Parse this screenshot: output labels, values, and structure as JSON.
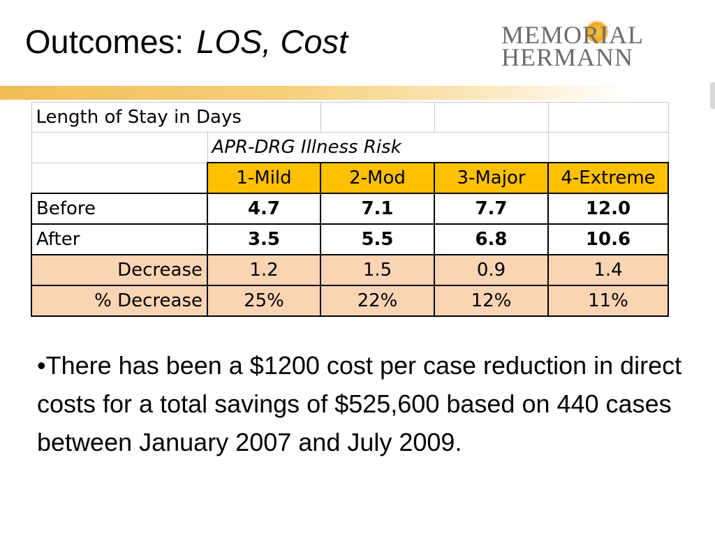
{
  "slide": {
    "title_main": "Outcomes:",
    "title_sub": "LOS, Cost"
  },
  "logo": {
    "line1": "MEMORIAL",
    "line2": "HERMANN"
  },
  "table": {
    "title": "Length of Stay in Days",
    "group_header": "APR-DRG  Illness Risk",
    "columns": [
      "1-Mild",
      "2-Mod",
      "3-Major",
      "4-Extreme"
    ],
    "rows": [
      {
        "label": "Before",
        "values": [
          "4.7",
          "7.1",
          "7.7",
          "12.0"
        ]
      },
      {
        "label": "After",
        "values": [
          "3.5",
          "5.5",
          "6.8",
          "10.6"
        ]
      },
      {
        "label": "Decrease",
        "values": [
          "1.2",
          "1.5",
          "0.9",
          "1.4"
        ]
      },
      {
        "label": "% Decrease",
        "values": [
          "25%",
          "22%",
          "12%",
          "11%"
        ]
      }
    ]
  },
  "bullet": "•There has been a $1200 cost per case reduction in direct costs for a total savings of $525,600 based on 440 cases between January 2007 and July 2009.",
  "colors": {
    "header_fill": "#ffc000",
    "decrease_fill": "#fbd4b4",
    "accent_bar": "#f2bd55",
    "logo_text": "#6b6b6b"
  }
}
